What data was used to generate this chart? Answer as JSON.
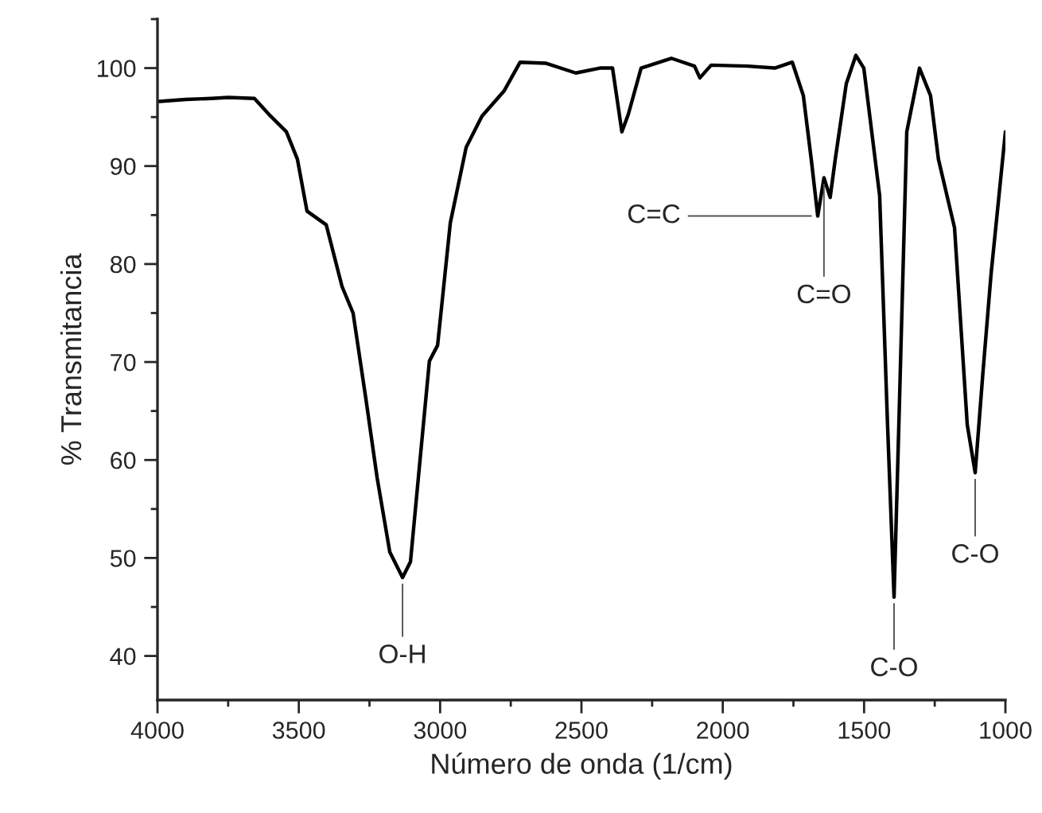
{
  "chart_data": {
    "type": "line",
    "xlabel": "Número de onda (1/cm)",
    "ylabel": "% Transmitancia",
    "xlim": [
      4000,
      1000
    ],
    "xticks": [
      4000,
      3500,
      3000,
      2500,
      2000,
      1500,
      1000
    ],
    "ylim": [
      35.5,
      105
    ],
    "yticks": [
      40,
      50,
      60,
      70,
      80,
      90,
      100
    ],
    "grid": false,
    "legend": false,
    "marker": "none",
    "line_style": "solid",
    "series": [
      {
        "color": "#000000",
        "x": [
          3994,
          3900,
          3809,
          3750,
          3657,
          3600,
          3544,
          3505,
          3471,
          3403,
          3347,
          3308,
          3263,
          3223,
          3178,
          3133,
          3105,
          3077,
          3038,
          3009,
          2964,
          2908,
          2852,
          2773,
          2717,
          2627,
          2520,
          2435,
          2390,
          2357,
          2334,
          2289,
          2182,
          2100,
          2081,
          2041,
          1912,
          1816,
          1754,
          1715,
          1687,
          1664,
          1642,
          1620,
          1602,
          1563,
          1529,
          1501,
          1445,
          1417,
          1394,
          1377,
          1349,
          1304,
          1265,
          1237,
          1180,
          1135,
          1107,
          1079,
          1051,
          1000
        ],
        "values": [
          96.6,
          96.8,
          96.9,
          97.0,
          96.9,
          95.1,
          93.5,
          90.7,
          85.4,
          84.0,
          77.7,
          75.0,
          66.3,
          58.2,
          50.6,
          48.0,
          49.6,
          58.2,
          70.1,
          71.7,
          84.2,
          91.9,
          95.1,
          97.7,
          100.6,
          100.5,
          99.5,
          100.0,
          100.0,
          93.5,
          95.3,
          100.0,
          101.0,
          100.2,
          99.0,
          100.3,
          100.2,
          100.0,
          100.6,
          97.2,
          90.7,
          84.9,
          88.8,
          86.8,
          90.7,
          98.4,
          101.3,
          100.0,
          87.0,
          63.6,
          46.0,
          63.6,
          93.5,
          100.0,
          97.2,
          90.7,
          83.7,
          63.6,
          58.7,
          69.1,
          78.9,
          93.5
        ]
      }
    ],
    "annotations": [
      {
        "text": "O-H",
        "x": 3133,
        "y": 48.0
      },
      {
        "text": "C=C",
        "x": 1664,
        "y": 84.9
      },
      {
        "text": "C=O",
        "x": 1642,
        "y": 88.8
      },
      {
        "text": "C-O",
        "x": 1394,
        "y": 46.0
      },
      {
        "text": "C-O",
        "x": 1107,
        "y": 58.7
      }
    ]
  }
}
